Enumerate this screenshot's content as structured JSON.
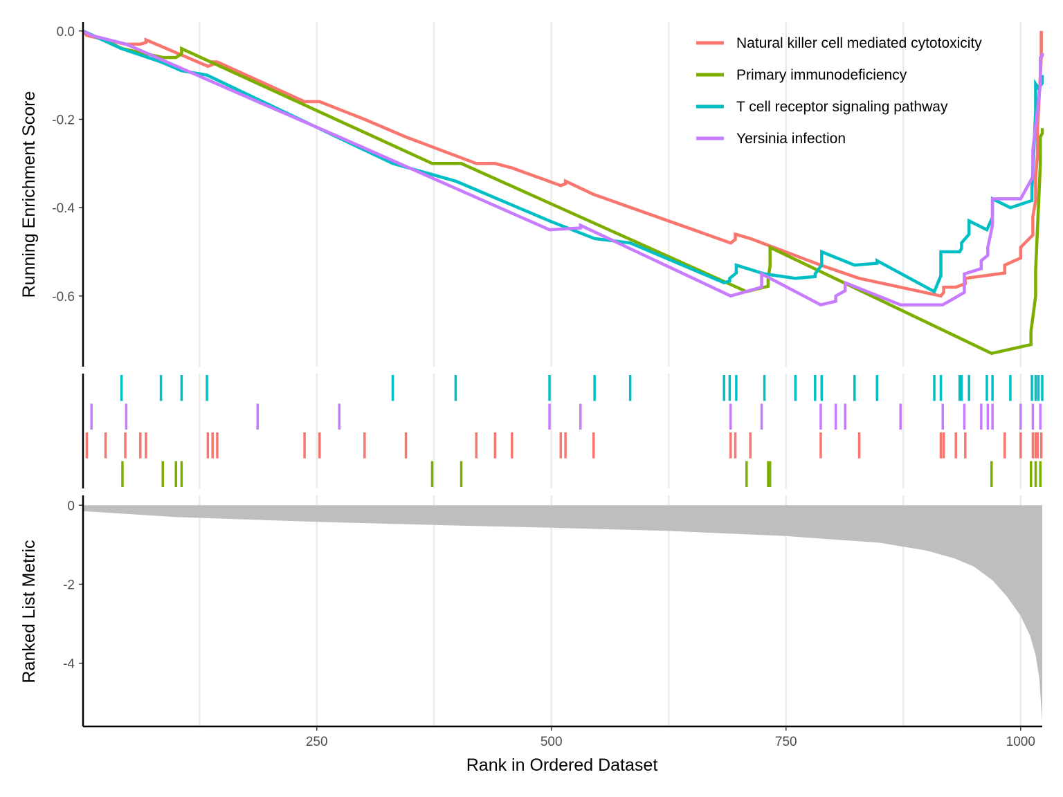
{
  "chart_data": {
    "type": "line",
    "panels": [
      "running-enrichment",
      "hit-markers",
      "ranked-list-metric"
    ],
    "xlabel": "Rank in Ordered Dataset",
    "xlim": [
      1,
      1023
    ],
    "x_ticks": [
      250,
      500,
      750,
      1000
    ],
    "x_gridlines": [
      125,
      250,
      375,
      500,
      625,
      750,
      875,
      1000
    ],
    "grid": true,
    "legend_position": "top-right",
    "running_es": {
      "ylabel": "Running Enrichment Score",
      "ylim": [
        -0.76,
        0.02
      ],
      "y_ticks": [
        0.0,
        -0.2,
        -0.4,
        -0.6
      ]
    },
    "ranked_metric": {
      "ylabel": "Ranked List Metric",
      "ylim": [
        -5.6,
        0.25
      ],
      "y_ticks": [
        0,
        -2,
        -4
      ],
      "fill_color": "#bebebe",
      "points": [
        [
          1,
          -0.15
        ],
        [
          100,
          -0.3
        ],
        [
          250,
          -0.42
        ],
        [
          375,
          -0.5
        ],
        [
          500,
          -0.57
        ],
        [
          625,
          -0.65
        ],
        [
          750,
          -0.78
        ],
        [
          850,
          -0.95
        ],
        [
          900,
          -1.15
        ],
        [
          930,
          -1.35
        ],
        [
          950,
          -1.55
        ],
        [
          970,
          -1.9
        ],
        [
          985,
          -2.3
        ],
        [
          1000,
          -2.8
        ],
        [
          1010,
          -3.3
        ],
        [
          1016,
          -3.8
        ],
        [
          1020,
          -4.4
        ],
        [
          1023,
          -5.5
        ]
      ]
    },
    "series": [
      {
        "name": "Natural killer cell mediated cytotoxicity",
        "color": "#F8766D",
        "hits": [
          5,
          25,
          46,
          62,
          68,
          134,
          139,
          144,
          237,
          253,
          301,
          345,
          420,
          440,
          458,
          510,
          515,
          545,
          691,
          696,
          712,
          787,
          828,
          915,
          918,
          931,
          941,
          983,
          1000,
          1013,
          1016,
          1018,
          1022
        ],
        "running_es": [
          [
            1,
            0.0
          ],
          [
            5,
            -0.01
          ],
          [
            25,
            -0.02
          ],
          [
            46,
            -0.03
          ],
          [
            62,
            -0.03
          ],
          [
            68,
            -0.02
          ],
          [
            134,
            -0.08
          ],
          [
            139,
            -0.07
          ],
          [
            144,
            -0.07
          ],
          [
            237,
            -0.16
          ],
          [
            253,
            -0.16
          ],
          [
            301,
            -0.2
          ],
          [
            345,
            -0.24
          ],
          [
            420,
            -0.3
          ],
          [
            440,
            -0.3
          ],
          [
            458,
            -0.31
          ],
          [
            510,
            -0.35
          ],
          [
            515,
            -0.34
          ],
          [
            545,
            -0.37
          ],
          [
            691,
            -0.48
          ],
          [
            696,
            -0.46
          ],
          [
            712,
            -0.47
          ],
          [
            787,
            -0.53
          ],
          [
            828,
            -0.56
          ],
          [
            915,
            -0.6
          ],
          [
            918,
            -0.58
          ],
          [
            931,
            -0.58
          ],
          [
            941,
            -0.56
          ],
          [
            983,
            -0.53
          ],
          [
            1000,
            -0.49
          ],
          [
            1013,
            -0.42
          ],
          [
            1016,
            -0.33
          ],
          [
            1018,
            -0.22
          ],
          [
            1022,
            0.0
          ]
        ]
      },
      {
        "name": "Primary immunodeficiency",
        "color": "#7CAE00",
        "hits": [
          43,
          86,
          100,
          106,
          373,
          404,
          708,
          731,
          733,
          969,
          1011,
          1016,
          1021
        ],
        "running_es": [
          [
            1,
            0.0
          ],
          [
            43,
            -0.04
          ],
          [
            86,
            -0.06
          ],
          [
            100,
            -0.06
          ],
          [
            106,
            -0.04
          ],
          [
            373,
            -0.3
          ],
          [
            404,
            -0.3
          ],
          [
            708,
            -0.59
          ],
          [
            731,
            -0.56
          ],
          [
            733,
            -0.49
          ],
          [
            969,
            -0.73
          ],
          [
            1011,
            -0.68
          ],
          [
            1016,
            -0.54
          ],
          [
            1021,
            -0.24
          ],
          [
            1023,
            -0.22
          ]
        ]
      },
      {
        "name": "T cell receptor signaling pathway",
        "color": "#00BFC4",
        "hits": [
          42,
          84,
          106,
          133,
          331,
          398,
          498,
          546,
          584,
          684,
          690,
          697,
          727,
          760,
          781,
          788,
          823,
          847,
          908,
          915,
          935,
          937,
          945,
          964,
          970,
          989,
          1012,
          1016,
          1019,
          1023
        ],
        "running_es": [
          [
            1,
            0.0
          ],
          [
            42,
            -0.04
          ],
          [
            84,
            -0.07
          ],
          [
            106,
            -0.09
          ],
          [
            133,
            -0.1
          ],
          [
            331,
            -0.3
          ],
          [
            398,
            -0.34
          ],
          [
            498,
            -0.43
          ],
          [
            546,
            -0.47
          ],
          [
            584,
            -0.48
          ],
          [
            684,
            -0.57
          ],
          [
            690,
            -0.56
          ],
          [
            697,
            -0.53
          ],
          [
            727,
            -0.55
          ],
          [
            760,
            -0.56
          ],
          [
            781,
            -0.55
          ],
          [
            788,
            -0.5
          ],
          [
            823,
            -0.53
          ],
          [
            847,
            -0.52
          ],
          [
            908,
            -0.59
          ],
          [
            915,
            -0.5
          ],
          [
            935,
            -0.5
          ],
          [
            937,
            -0.48
          ],
          [
            945,
            -0.43
          ],
          [
            964,
            -0.45
          ],
          [
            970,
            -0.38
          ],
          [
            989,
            -0.4
          ],
          [
            1012,
            -0.36
          ],
          [
            1016,
            -0.12
          ],
          [
            1019,
            -0.13
          ],
          [
            1023,
            -0.1
          ]
        ]
      },
      {
        "name": "Yersinia infection",
        "color": "#C77CFF",
        "hits": [
          10,
          47,
          187,
          274,
          498,
          531,
          691,
          724,
          787,
          803,
          813,
          872,
          917,
          940,
          958,
          965,
          970,
          1000,
          1013,
          1021
        ],
        "running_es": [
          [
            1,
            0.0
          ],
          [
            10,
            -0.01
          ],
          [
            47,
            -0.03
          ],
          [
            187,
            -0.16
          ],
          [
            274,
            -0.24
          ],
          [
            498,
            -0.45
          ],
          [
            531,
            -0.44
          ],
          [
            691,
            -0.6
          ],
          [
            724,
            -0.55
          ],
          [
            787,
            -0.62
          ],
          [
            803,
            -0.6
          ],
          [
            813,
            -0.57
          ],
          [
            872,
            -0.62
          ],
          [
            917,
            -0.62
          ],
          [
            940,
            -0.55
          ],
          [
            958,
            -0.52
          ],
          [
            965,
            -0.49
          ],
          [
            970,
            -0.38
          ],
          [
            1000,
            -0.38
          ],
          [
            1013,
            -0.27
          ],
          [
            1021,
            -0.06
          ],
          [
            1023,
            -0.05
          ]
        ]
      }
    ]
  }
}
